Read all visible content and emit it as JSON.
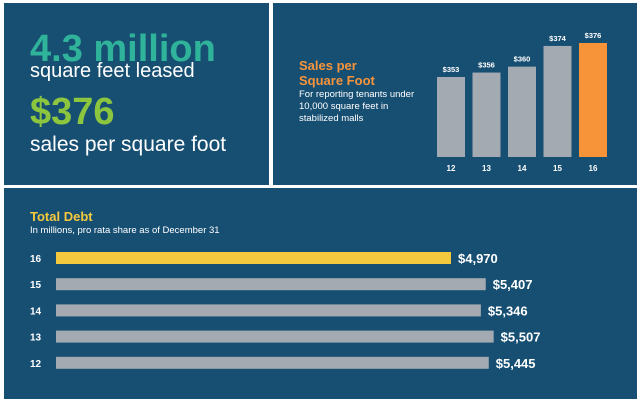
{
  "stats": {
    "leased_value": "4.3 million",
    "leased_label": "square feet leased",
    "sales_value": "$376",
    "sales_label": "sales per square foot"
  },
  "sales_panel": {
    "title_line1": "Sales per",
    "title_line2": "Square Foot",
    "subtitle": "For reporting tenants under 10,000 square feet in stabilized malls"
  },
  "debt_panel": {
    "title": "Total Debt",
    "subtitle": "In millions, pro rata share as of December 31"
  },
  "colors": {
    "panel_bg": "#174f73",
    "bar_gray": "#a3aab1",
    "sales_highlight": "#f7943a",
    "debt_highlight": "#f5c93d"
  },
  "chart_data": [
    {
      "type": "bar",
      "orientation": "vertical",
      "categories": [
        "12",
        "13",
        "14",
        "15",
        "16"
      ],
      "values": [
        353,
        356,
        360,
        374,
        376
      ],
      "value_labels": [
        "$353",
        "$356",
        "$360",
        "$374",
        "$376"
      ],
      "highlight_index": 4
    },
    {
      "type": "bar",
      "orientation": "horizontal",
      "categories": [
        "16",
        "15",
        "14",
        "13",
        "12"
      ],
      "values": [
        4970,
        5407,
        5346,
        5507,
        5445
      ],
      "value_labels": [
        "$4,970",
        "$5,407",
        "$5,346",
        "$5,507",
        "$5,445"
      ],
      "highlight_index": 0
    }
  ]
}
